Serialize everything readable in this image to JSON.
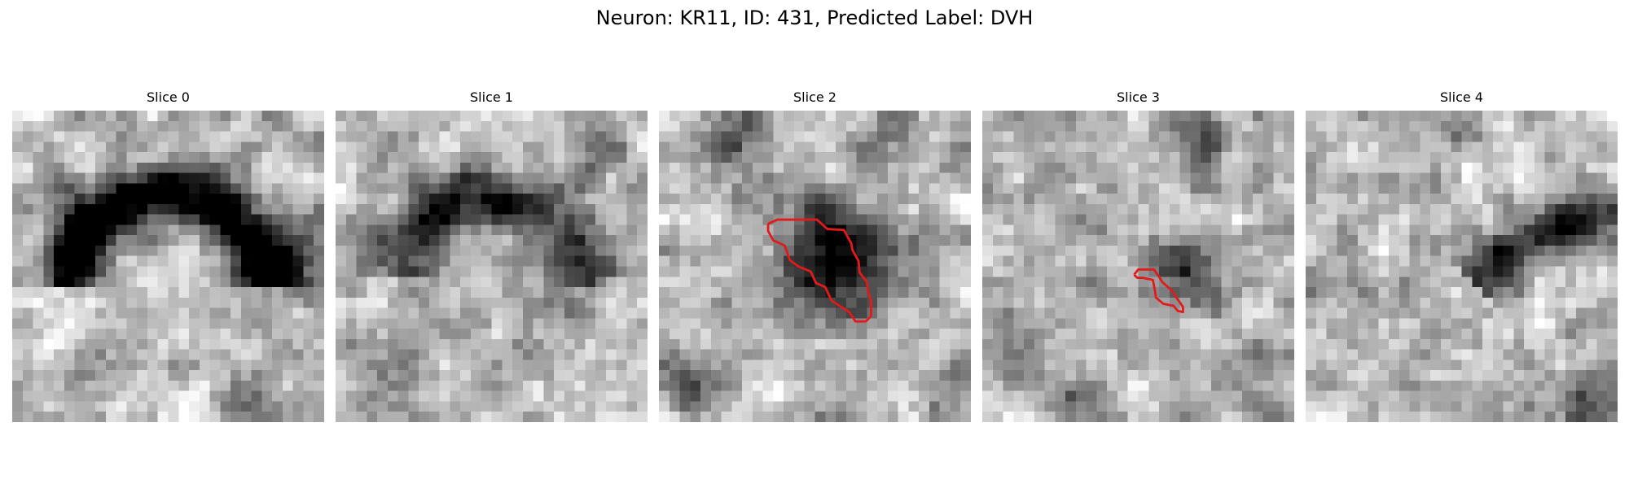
{
  "figure": {
    "title": "Neuron: KR11, ID: 431, Predicted Label: DVH"
  },
  "panels": [
    {
      "title": "Slice 0",
      "has_contour": false
    },
    {
      "title": "Slice 1",
      "has_contour": false
    },
    {
      "title": "Slice 2",
      "has_contour": true
    },
    {
      "title": "Slice 3",
      "has_contour": true
    },
    {
      "title": "Slice 4",
      "has_contour": false
    }
  ],
  "colors": {
    "contour": "#e31a1c",
    "background": "#ffffff"
  }
}
